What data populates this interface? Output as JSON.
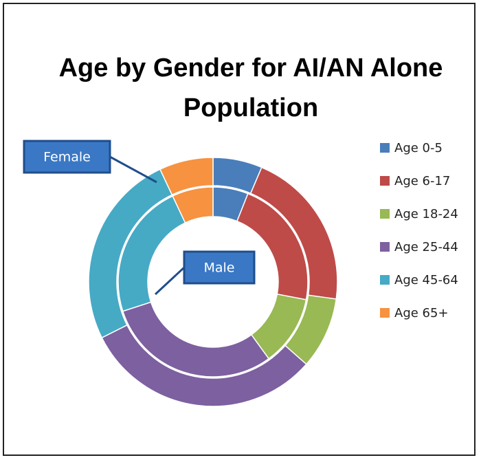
{
  "chart_data": {
    "type": "doughnut",
    "title": "Age by Gender for AI/AN Alone Population",
    "categories": [
      "Age 0-5",
      "Age 6-17",
      "Age 18-24",
      "Age 25-44",
      "Age 45-64",
      "Age 65+"
    ],
    "colors": [
      "#4a7ebb",
      "#be4b48",
      "#98b954",
      "#7d60a0",
      "#46aac5",
      "#f69240"
    ],
    "series": [
      {
        "name": "Female",
        "values": [
          6.4,
          20.8,
          9.3,
          31.1,
          25.4,
          7
        ]
      },
      {
        "name": "Male",
        "values": [
          6,
          22,
          12,
          30,
          23,
          7
        ]
      }
    ]
  }
}
